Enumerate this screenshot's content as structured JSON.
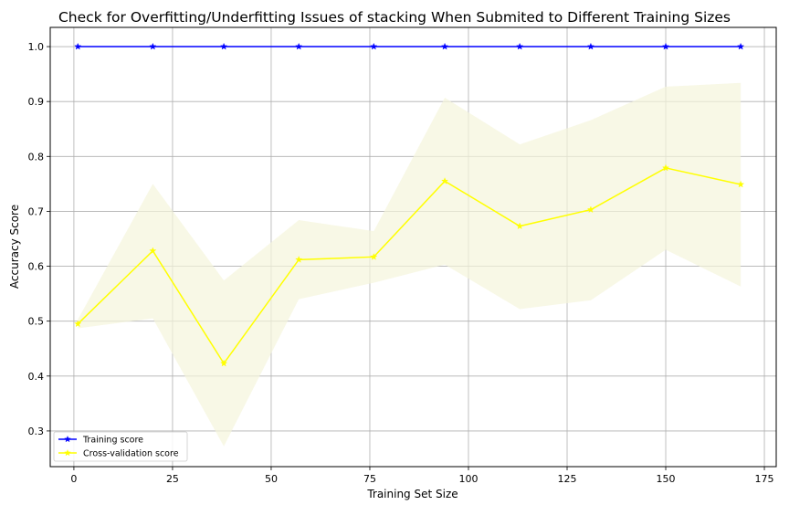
{
  "chart_data": {
    "type": "line",
    "title": "Check for Overfitting/Underfitting Issues of stacking When Submited to Different Training Sizes",
    "xlabel": "Training Set Size",
    "ylabel": "Accuracy Score",
    "xlim": [
      -6,
      178
    ],
    "ylim": [
      0.235,
      1.035
    ],
    "xticks": [
      0,
      25,
      50,
      75,
      100,
      125,
      150,
      175
    ],
    "yticks": [
      0.3,
      0.4,
      0.5,
      0.6,
      0.7,
      0.8,
      0.9,
      1.0
    ],
    "xtick_labels": [
      "0",
      "25",
      "50",
      "75",
      "100",
      "125",
      "150",
      "175"
    ],
    "ytick_labels": [
      "0.3",
      "0.4",
      "0.5",
      "0.6",
      "0.7",
      "0.8",
      "0.9",
      "1.0"
    ],
    "grid": true,
    "legend_position": "lower-left",
    "x": [
      1,
      20,
      38,
      57,
      76,
      94,
      113,
      131,
      150,
      169
    ],
    "series": [
      {
        "name": "Training score",
        "color": "#0000ff",
        "marker": "star",
        "values": [
          1.0,
          1.0,
          1.0,
          1.0,
          1.0,
          1.0,
          1.0,
          1.0,
          1.0,
          1.0
        ]
      },
      {
        "name": "Cross-validation score",
        "color": "#ffff00",
        "marker": "star",
        "values": [
          0.495,
          0.628,
          0.423,
          0.612,
          0.617,
          0.755,
          0.673,
          0.703,
          0.779,
          0.749
        ],
        "band_lower": [
          0.487,
          0.505,
          0.272,
          0.54,
          0.57,
          0.603,
          0.522,
          0.538,
          0.63,
          0.563
        ],
        "band_upper": [
          0.503,
          0.75,
          0.574,
          0.684,
          0.664,
          0.907,
          0.822,
          0.866,
          0.927,
          0.934
        ],
        "band_color": "#f5f5dc"
      }
    ]
  }
}
